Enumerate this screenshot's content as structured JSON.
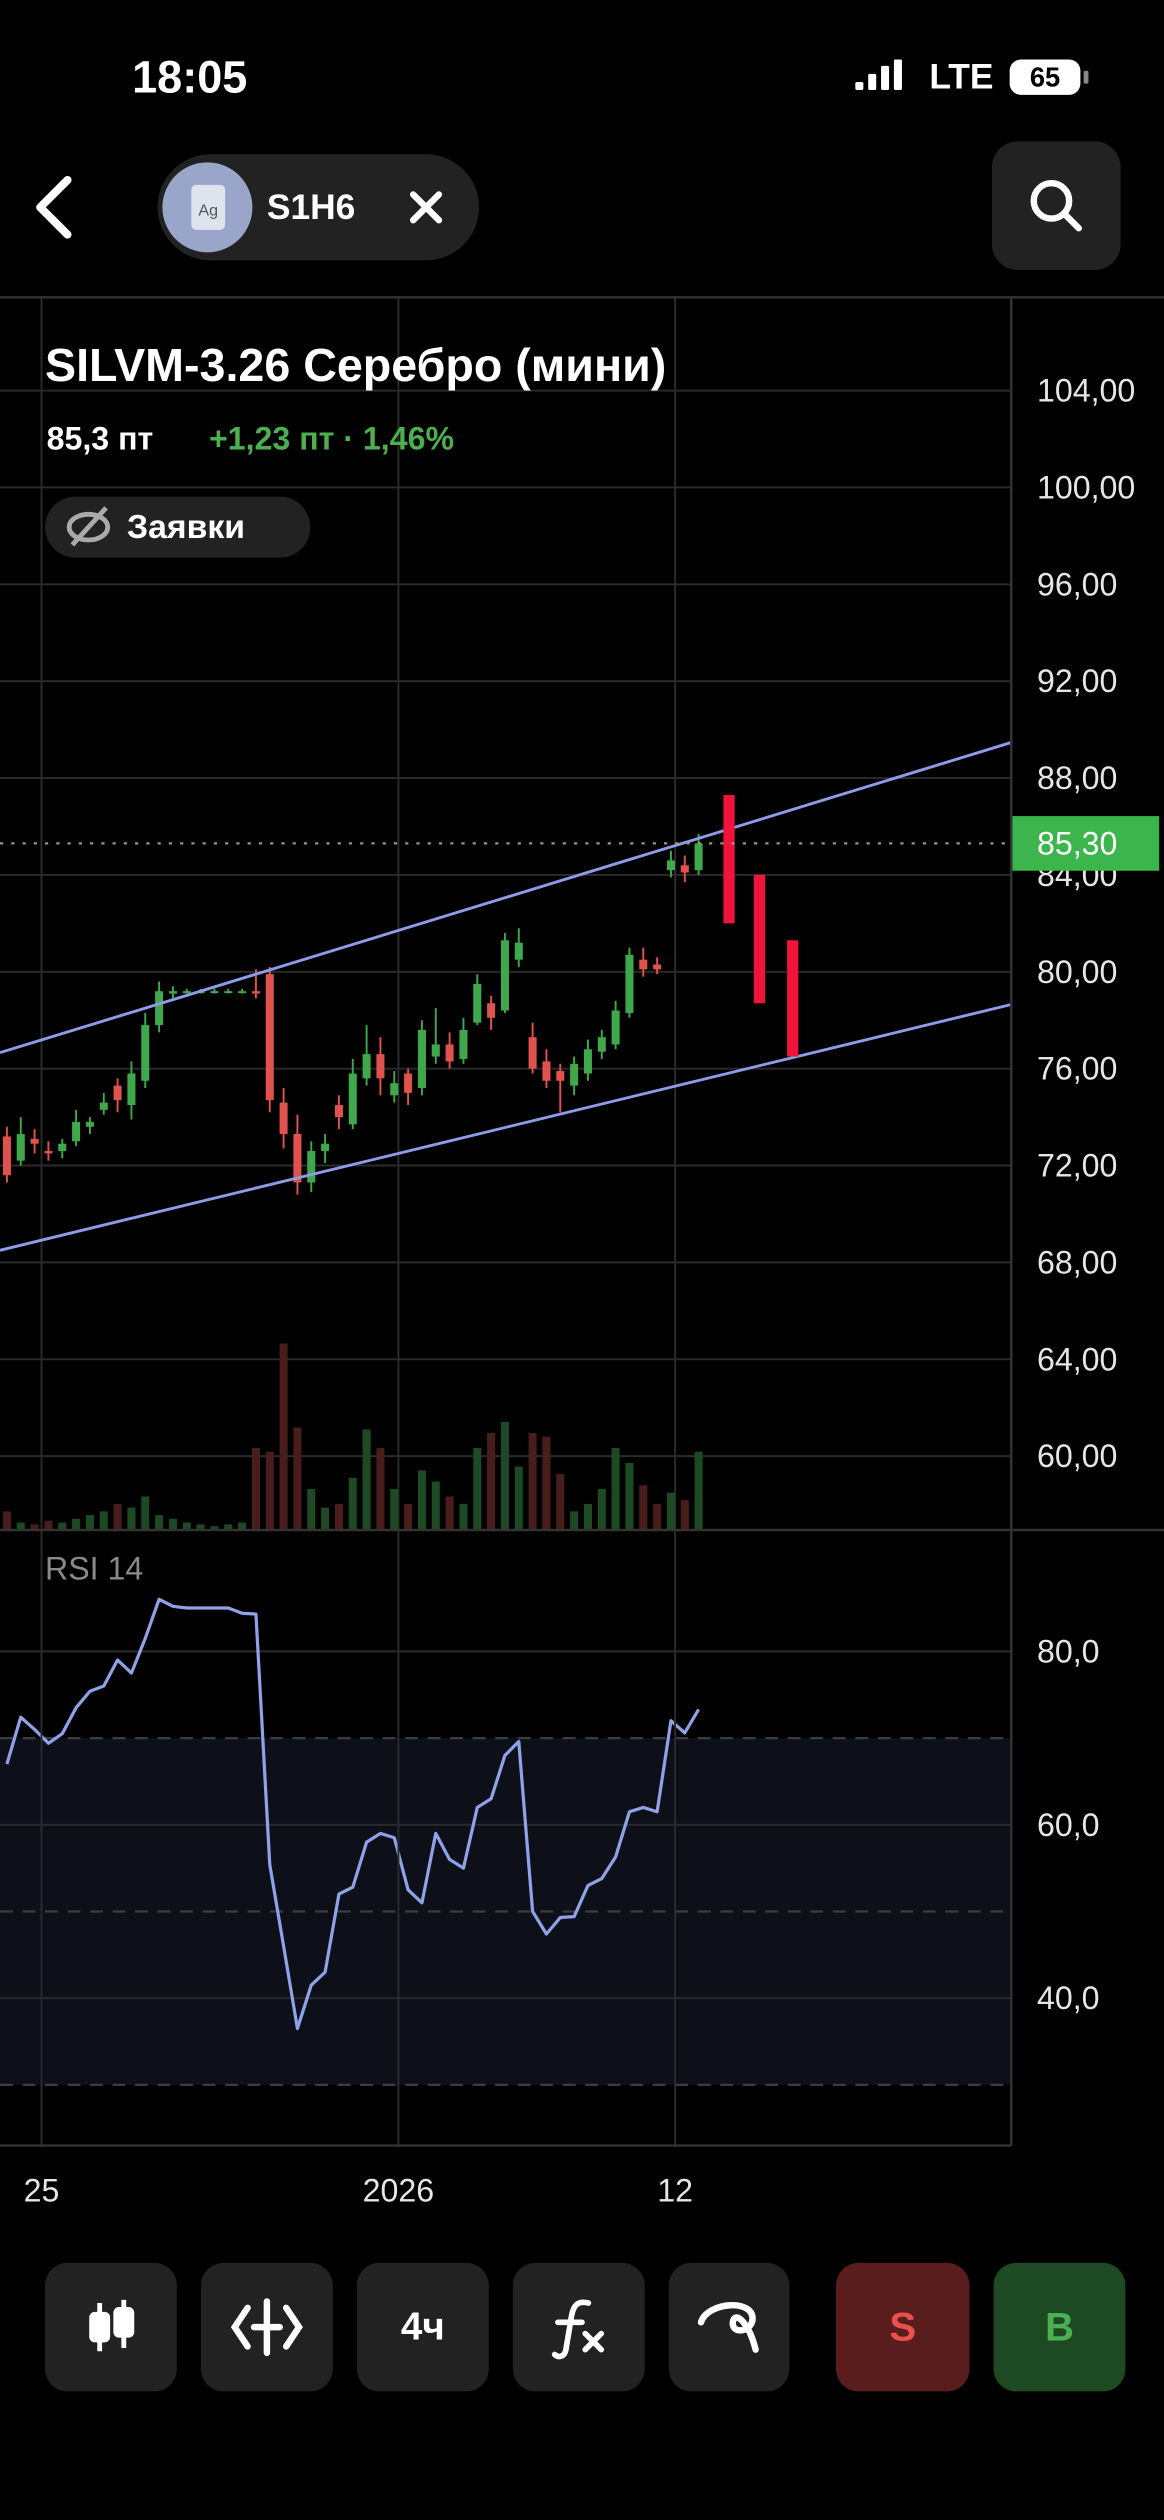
{
  "status_bar": {
    "time": "18:05",
    "network": "LTE",
    "battery": "65"
  },
  "header": {
    "icon_label": "Ag",
    "ticker": "S1H6"
  },
  "instrument": {
    "title": "SILVM-3.26 Серебро (мини)",
    "price": "85,3 пт",
    "change": "+1,23 пт · 1,46%",
    "orders_toggle": "Заявки"
  },
  "chart_data": [
    {
      "type": "candlestick",
      "categories": [
        null,
        null,
        null,
        null,
        null,
        null,
        null,
        null,
        null,
        null,
        null,
        null,
        null,
        null,
        null,
        null,
        null,
        null,
        null,
        null,
        null,
        null,
        null,
        null,
        null,
        null,
        null,
        null,
        null,
        null,
        null,
        null,
        null,
        null,
        null,
        null,
        null,
        null,
        null,
        null,
        null,
        null,
        null,
        null,
        null,
        null,
        null,
        null,
        null,
        null,
        null
      ],
      "open": [
        73.2,
        72.2,
        73.1,
        72.6,
        72.6,
        73,
        73.6,
        74.3,
        75.3,
        74.5,
        75.5,
        77.8,
        79.1,
        79.2,
        79.2,
        79.2,
        79.2,
        79.2,
        79.2,
        79.9,
        74.6,
        73.3,
        71.3,
        72.6,
        74.5,
        73.7,
        75.6,
        76.6,
        74.9,
        75.8,
        75.2,
        76.5,
        77,
        76.4,
        77.9,
        78.7,
        78.4,
        80.5,
        77.3,
        76.3,
        75.9,
        75.3,
        75.8,
        76.7,
        77,
        78.3,
        80.5,
        80.3,
        84.2,
        84.4,
        84.2
      ],
      "high": [
        73.6,
        74,
        73.5,
        73,
        73.1,
        74.3,
        74,
        75,
        75.6,
        76.3,
        78.3,
        79.6,
        79.4,
        79.3,
        79.3,
        79.3,
        79.3,
        79.3,
        80.1,
        80.2,
        75.2,
        74.1,
        73,
        73.3,
        74.9,
        76.4,
        77.8,
        77.3,
        75.9,
        76,
        78,
        78.5,
        77.5,
        78.1,
        79.9,
        79,
        81.6,
        81.8,
        77.9,
        76.8,
        76.2,
        76.5,
        77.2,
        77.6,
        78.8,
        81,
        81,
        80.6,
        85,
        84.8,
        85.7
      ],
      "low": [
        71.3,
        72,
        72.5,
        72.2,
        72.3,
        72.8,
        73.3,
        74.1,
        74.2,
        73.9,
        75.2,
        77.5,
        78.9,
        79.1,
        79.1,
        79.1,
        79.1,
        79.1,
        78.9,
        74.2,
        72.7,
        70.8,
        70.9,
        72.1,
        73.5,
        73.5,
        75.3,
        74.9,
        74.6,
        74.5,
        74.9,
        76.2,
        76,
        76.2,
        77.8,
        77.6,
        78.3,
        80.2,
        75.8,
        75.2,
        74.2,
        74.9,
        75.5,
        76.4,
        76.8,
        78.1,
        79.8,
        79.9,
        83.9,
        83.7,
        84
      ],
      "close": [
        71.6,
        73.3,
        72.9,
        72.5,
        72.9,
        73.8,
        73.8,
        74.6,
        74.7,
        75.8,
        77.8,
        79.2,
        79.2,
        79.2,
        79.2,
        79.2,
        79.2,
        79.2,
        79.1,
        74.7,
        73.3,
        71.3,
        72.6,
        72.9,
        74,
        75.8,
        76.6,
        75.6,
        75.4,
        75,
        77.6,
        77,
        76.3,
        77.6,
        79.5,
        78.1,
        81.3,
        81.2,
        76,
        75.5,
        75.5,
        76.2,
        76.8,
        77.3,
        78.4,
        80.7,
        80.1,
        80.1,
        84.6,
        84.1,
        85.3
      ],
      "volume": [
        10,
        4,
        3,
        5,
        4,
        6,
        8,
        10,
        14,
        12,
        18,
        8,
        6,
        4,
        3,
        2,
        3,
        4,
        44,
        42,
        100,
        55,
        22,
        12,
        14,
        28,
        54,
        44,
        22,
        14,
        32,
        26,
        18,
        14,
        44,
        52,
        58,
        34,
        52,
        50,
        30,
        10,
        14,
        22,
        44,
        36,
        24,
        14,
        20,
        16,
        42
      ],
      "up_color": "#3fa84c",
      "down_color": "#e0524d",
      "volume_up_color": "#1d4a24",
      "volume_down_color": "#4a1d1d",
      "xlim": [
        -0.5,
        72.6
      ],
      "xticks": [
        {
          "value": 2.5,
          "label": "25"
        },
        {
          "value": 28.3,
          "label": "2026"
        },
        {
          "value": 48.3,
          "label": "12"
        }
      ],
      "ylim": [
        56.95,
        107.85
      ],
      "yticks": [
        {
          "value": 104,
          "label": "104,00"
        },
        {
          "value": 100,
          "label": "100,00"
        },
        {
          "value": 96,
          "label": "96,00"
        },
        {
          "value": 92,
          "label": "92,00"
        },
        {
          "value": 88,
          "label": "88,00"
        },
        {
          "value": 84,
          "label": "84,00"
        },
        {
          "value": 80,
          "label": "80,00"
        },
        {
          "value": 76,
          "label": "76,00"
        },
        {
          "value": 72,
          "label": "72,00"
        },
        {
          "value": 68,
          "label": "68,00"
        },
        {
          "value": 64,
          "label": "64,00"
        },
        {
          "value": 60,
          "label": "60,00"
        }
      ],
      "grid": true,
      "last_price": {
        "value": 85.3,
        "label": "85,30",
        "color": "#3cb54c"
      },
      "trendlines": [
        {
          "x": [
            -0.5,
            72.6
          ],
          "y": [
            76.66,
            89.47
          ],
          "color": "#8c9ce8"
        },
        {
          "x": [
            -0.5,
            72.6
          ],
          "y": [
            68.5,
            78.65
          ],
          "color": "#8c9ce8"
        }
      ],
      "drawings": [
        {
          "x": 52.2,
          "from": 87.3,
          "to": 82,
          "color": "#f0143c"
        },
        {
          "x": 54.4,
          "from": 84,
          "to": 78.7,
          "color": "#f0143c"
        },
        {
          "x": 56.8,
          "from": 81.3,
          "to": 76.5,
          "color": "#f0143c"
        }
      ]
    },
    {
      "type": "line",
      "title": "RSI 14",
      "values": [
        67,
        72.4,
        71,
        69.4,
        70.5,
        73.5,
        75.4,
        76,
        79,
        77.5,
        81.5,
        86,
        85.2,
        85,
        85,
        85,
        85,
        84.4,
        84.3,
        55.4,
        46,
        36.5,
        41.5,
        43,
        52,
        52.8,
        58,
        59,
        58.5,
        52.5,
        51,
        59,
        56,
        55,
        62,
        63,
        68,
        69.6,
        50,
        47.4,
        49.3,
        49.4,
        53,
        53.8,
        56.3,
        61.5,
        62,
        61.5,
        72,
        70.6,
        73.3
      ],
      "color": "#8fa2e8",
      "xlim": [
        -0.5,
        72.6
      ],
      "ylim": [
        23,
        94
      ],
      "yticks": [
        {
          "value": 80,
          "label": "80,0"
        },
        {
          "value": 60,
          "label": "60,0"
        },
        {
          "value": 40,
          "label": "40,0"
        }
      ],
      "levels": [
        70,
        50,
        30
      ],
      "band": [
        30,
        70
      ],
      "grid": true
    }
  ],
  "toolbar": {
    "interval": "4ч",
    "sell": "S",
    "buy": "B"
  }
}
